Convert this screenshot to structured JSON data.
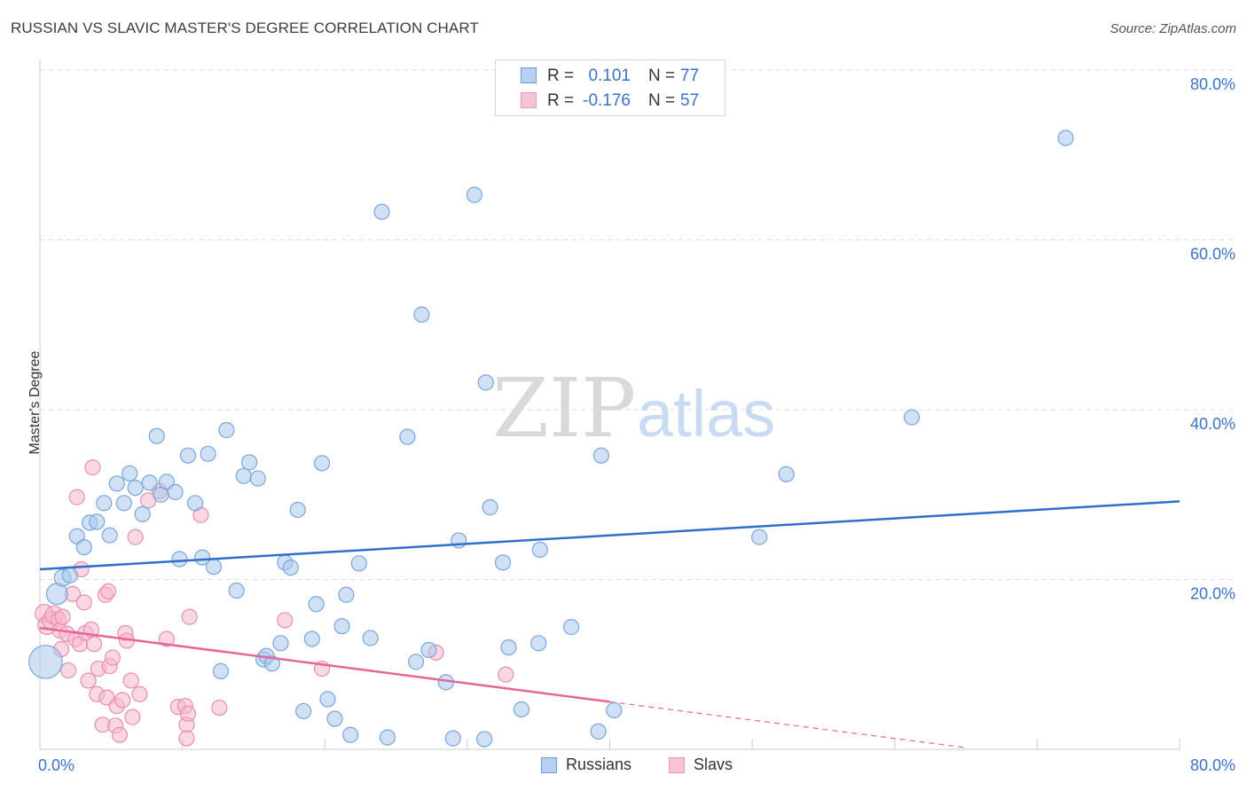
{
  "title": "RUSSIAN VS SLAVIC MASTER'S DEGREE CORRELATION CHART",
  "source": "Source: ZipAtlas.com",
  "watermark": {
    "zip": "ZIP",
    "atlas": "atlas"
  },
  "legend": {
    "russians": {
      "r_label": "R =",
      "r_value": "0.101",
      "n_label": "N =",
      "n_value": "77"
    },
    "slavs": {
      "r_label": "R =",
      "r_value": "-0.176",
      "n_label": "N =",
      "n_value": "57"
    }
  },
  "bottom_legend": {
    "russians": "Russians",
    "slavs": "Slavs"
  },
  "colors": {
    "russians_fill": "#a9c8ef",
    "russians_stroke": "#7aa5dd",
    "russians_line": "#2f6fcc",
    "slavs_fill": "#f5b8cc",
    "slavs_stroke": "#ea8fae",
    "slavs_line": "#e8649a",
    "tick_label": "#3a72c8",
    "grid": "#dddddd"
  },
  "chart_data": {
    "type": "scatter",
    "title": "RUSSIAN VS SLAVIC MASTER'S DEGREE CORRELATION CHART",
    "xlabel": "",
    "ylabel": "Master's Degree",
    "xlim": [
      0,
      80
    ],
    "ylim": [
      0,
      80
    ],
    "x_tick_labels": [
      "0.0%",
      "80.0%"
    ],
    "y_ticks": [
      20,
      40,
      60,
      80
    ],
    "y_tick_labels": [
      "20.0%",
      "40.0%",
      "60.0%",
      "80.0%"
    ],
    "series": [
      {
        "name": "Russians",
        "r": 0.101,
        "n": 77,
        "trend": {
          "x0": 0,
          "y0": 21.2,
          "x1": 80,
          "y1": 29.2
        },
        "points": [
          [
            0.4,
            10.3,
            2.2
          ],
          [
            1.2,
            18.3,
            1.4
          ],
          [
            1.6,
            20.2,
            1.1
          ],
          [
            2.1,
            20.5,
            1
          ],
          [
            2.6,
            25.1,
            1
          ],
          [
            3.1,
            23.8,
            1
          ],
          [
            3.5,
            26.7,
            1
          ],
          [
            4.0,
            26.8,
            1
          ],
          [
            4.5,
            29.0,
            1
          ],
          [
            4.9,
            25.2,
            1
          ],
          [
            5.4,
            31.3,
            1
          ],
          [
            5.9,
            29.0,
            1
          ],
          [
            6.3,
            32.5,
            1
          ],
          [
            6.7,
            30.8,
            1
          ],
          [
            7.2,
            27.7,
            1
          ],
          [
            7.7,
            31.4,
            1
          ],
          [
            8.2,
            36.9,
            1
          ],
          [
            8.5,
            30.0,
            1
          ],
          [
            8.9,
            31.5,
            1
          ],
          [
            9.5,
            30.3,
            1
          ],
          [
            9.8,
            22.4,
            1
          ],
          [
            10.4,
            34.6,
            1
          ],
          [
            10.9,
            29.0,
            1
          ],
          [
            11.4,
            22.6,
            1
          ],
          [
            11.8,
            34.8,
            1
          ],
          [
            12.2,
            21.5,
            1
          ],
          [
            12.7,
            9.2,
            1
          ],
          [
            13.1,
            37.6,
            1
          ],
          [
            13.8,
            18.7,
            1
          ],
          [
            14.3,
            32.2,
            1
          ],
          [
            14.7,
            33.8,
            1
          ],
          [
            15.3,
            31.9,
            1
          ],
          [
            15.7,
            10.6,
            1
          ],
          [
            15.9,
            11.0,
            1
          ],
          [
            16.3,
            10.1,
            1
          ],
          [
            16.9,
            12.5,
            1
          ],
          [
            17.2,
            22.0,
            1
          ],
          [
            17.6,
            21.4,
            1
          ],
          [
            18.1,
            28.2,
            1
          ],
          [
            18.5,
            4.5,
            1
          ],
          [
            19.1,
            13.0,
            1
          ],
          [
            19.4,
            17.1,
            1
          ],
          [
            19.8,
            33.7,
            1
          ],
          [
            20.2,
            5.9,
            1
          ],
          [
            20.7,
            3.6,
            1
          ],
          [
            21.2,
            14.5,
            1
          ],
          [
            21.5,
            18.2,
            1
          ],
          [
            21.8,
            1.7,
            1
          ],
          [
            22.4,
            21.9,
            1
          ],
          [
            23.2,
            13.1,
            1
          ],
          [
            24.0,
            63.3,
            1
          ],
          [
            24.4,
            1.4,
            1
          ],
          [
            25.8,
            36.8,
            1
          ],
          [
            26.4,
            10.3,
            1
          ],
          [
            26.8,
            51.2,
            1
          ],
          [
            27.3,
            11.7,
            1
          ],
          [
            28.5,
            7.9,
            1
          ],
          [
            29.0,
            1.3,
            1
          ],
          [
            29.4,
            24.6,
            1
          ],
          [
            30.5,
            65.3,
            1
          ],
          [
            31.2,
            1.2,
            1
          ],
          [
            31.3,
            43.2,
            1
          ],
          [
            31.6,
            28.5,
            1
          ],
          [
            32.5,
            22.0,
            1
          ],
          [
            32.9,
            12.0,
            1
          ],
          [
            33.8,
            4.7,
            1
          ],
          [
            35.0,
            12.5,
            1
          ],
          [
            35.1,
            23.5,
            1
          ],
          [
            37.3,
            14.4,
            1
          ],
          [
            39.2,
            2.1,
            1
          ],
          [
            39.4,
            34.6,
            1
          ],
          [
            40.3,
            4.6,
            1
          ],
          [
            50.5,
            25.0,
            1
          ],
          [
            52.4,
            32.4,
            1
          ],
          [
            61.2,
            39.1,
            1
          ],
          [
            72.0,
            72.0,
            1
          ]
        ]
      },
      {
        "name": "Slavs",
        "r": -0.176,
        "n": 57,
        "trend": {
          "x0": 0,
          "y0": 14.3,
          "x1": 40,
          "y1": 5.6,
          "x_dash_end": 65,
          "y_dash_end": 0.2
        },
        "points": [
          [
            0.3,
            16.0,
            1.2
          ],
          [
            0.5,
            14.6,
            1.2
          ],
          [
            0.8,
            15.2,
            1.2
          ],
          [
            1.0,
            15.8,
            1.2
          ],
          [
            1.3,
            15.3,
            1
          ],
          [
            1.4,
            14.0,
            1
          ],
          [
            1.5,
            11.8,
            1
          ],
          [
            1.6,
            15.6,
            1
          ],
          [
            1.9,
            13.6,
            1
          ],
          [
            2.0,
            9.3,
            1
          ],
          [
            2.3,
            18.3,
            1
          ],
          [
            2.5,
            13.0,
            1
          ],
          [
            2.6,
            29.7,
            1
          ],
          [
            2.8,
            12.4,
            1
          ],
          [
            2.9,
            21.2,
            1
          ],
          [
            3.1,
            17.3,
            1
          ],
          [
            3.2,
            13.7,
            1
          ],
          [
            3.4,
            8.1,
            1
          ],
          [
            3.6,
            14.1,
            1
          ],
          [
            3.7,
            33.2,
            1
          ],
          [
            3.8,
            12.4,
            1
          ],
          [
            4.0,
            6.5,
            1
          ],
          [
            4.1,
            9.5,
            1
          ],
          [
            4.4,
            2.9,
            1
          ],
          [
            4.6,
            18.2,
            1
          ],
          [
            4.7,
            6.1,
            1
          ],
          [
            4.8,
            18.6,
            1
          ],
          [
            4.9,
            9.8,
            1
          ],
          [
            5.1,
            10.8,
            1
          ],
          [
            5.3,
            2.8,
            1
          ],
          [
            5.4,
            5.1,
            1
          ],
          [
            5.6,
            1.7,
            1
          ],
          [
            5.8,
            5.8,
            1
          ],
          [
            6.0,
            13.7,
            1
          ],
          [
            6.1,
            12.8,
            1
          ],
          [
            6.4,
            8.1,
            1
          ],
          [
            6.5,
            3.8,
            1
          ],
          [
            6.7,
            25.0,
            1
          ],
          [
            7.0,
            6.5,
            1
          ],
          [
            7.6,
            29.3,
            1
          ],
          [
            8.4,
            30.4,
            1
          ],
          [
            8.9,
            13.0,
            1
          ],
          [
            9.7,
            5.0,
            1
          ],
          [
            10.2,
            5.1,
            1
          ],
          [
            10.3,
            2.9,
            1
          ],
          [
            10.3,
            1.3,
            1
          ],
          [
            10.4,
            4.2,
            1
          ],
          [
            10.5,
            15.6,
            1
          ],
          [
            11.3,
            27.6,
            1
          ],
          [
            12.6,
            4.9,
            1
          ],
          [
            17.2,
            15.2,
            1
          ],
          [
            19.8,
            9.5,
            1
          ],
          [
            27.8,
            11.4,
            1
          ],
          [
            32.7,
            8.8,
            1
          ]
        ]
      }
    ]
  }
}
